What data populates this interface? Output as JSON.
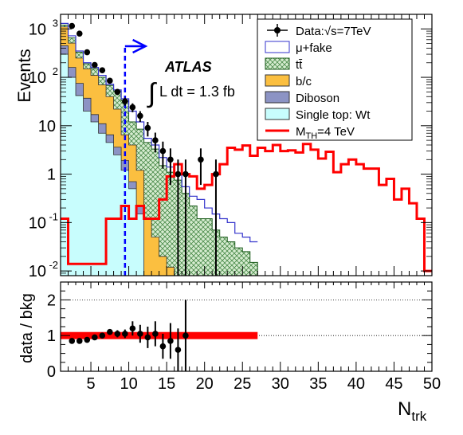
{
  "chart_data": [
    {
      "type": "histogram",
      "ylabel": "Events",
      "xlabel": "N_trk",
      "xlim": [
        1,
        50
      ],
      "ylim": [
        0.008,
        2000
      ],
      "yscale": "log",
      "ytick_labels": [
        "10^-2",
        "10^-1",
        "1",
        "10",
        "10^2",
        "10^3"
      ],
      "annotation": {
        "experiment": "ATLAS",
        "lumi_prefix": "L dt = 1.3 fb",
        "lumi_exp": "-1"
      },
      "cut_line": {
        "x": 9.5,
        "arrow_to": 12.0
      },
      "legend_position": "top-right",
      "legend": {
        "data": "Data:√s=7TeV",
        "mufake": "μ+fake",
        "ttbar": "tt̄",
        "bc": "b/c",
        "diboson": "Diboson",
        "singletop": "Single top: Wt",
        "signal_prefix": "M",
        "signal_sub": "TH",
        "signal_suffix": "=4 TeV"
      },
      "colors": {
        "mufake": "#3333cc",
        "ttbar_fill": "#d6ecd0",
        "ttbar_hatch": "#4a8a4a",
        "bc": "#fbbf40",
        "diboson": "#8c93c4",
        "singletop": "#c8fdfd",
        "signal": "#ff0000",
        "cut": "#0000ff",
        "ratio_band": "#ff0000"
      },
      "bins_low": 1,
      "bins_high": 50,
      "stack_singletop": [
        300,
        100,
        42,
        20,
        12,
        7,
        4.5,
        2.5,
        1.2,
        0.5,
        0.15
      ],
      "stack_diboson": [
        450,
        160,
        75,
        37,
        17,
        11,
        6.5,
        3.6,
        1.9,
        0.7,
        0.22
      ],
      "stack_bc": [
        1100,
        510,
        250,
        150,
        110,
        70,
        40,
        22,
        6.5,
        4,
        1.2,
        0.12,
        0.05,
        0.02,
        0.012
      ],
      "stack_ttbar": [
        1200,
        650,
        330,
        190,
        150,
        100,
        68,
        52,
        33,
        12,
        8.5,
        4.5,
        3.3,
        1.5,
        1.1,
        0.75,
        0.4,
        0.22,
        0.12,
        0.12,
        0.07,
        0.05,
        0.04,
        0.03,
        0.025,
        0.015
      ],
      "mufake_total": [
        1300,
        720,
        350,
        200,
        160,
        110,
        72,
        55,
        36,
        20,
        12,
        5.5,
        4,
        2.2,
        1.4,
        0.95,
        0.55,
        0.35,
        0.3,
        0.2,
        0.15,
        0.12,
        0.1,
        0.06,
        0.05,
        0.04
      ],
      "data_points": [
        {
          "x": 2,
          "y": 1150,
          "err": 34
        },
        {
          "x": 3,
          "y": 800,
          "err": 28
        },
        {
          "x": 4,
          "y": 330,
          "err": 18
        },
        {
          "x": 5,
          "y": 180,
          "err": 13
        },
        {
          "x": 6,
          "y": 140,
          "err": 12
        },
        {
          "x": 7,
          "y": 85,
          "err": 9
        },
        {
          "x": 8,
          "y": 50,
          "err": 7
        },
        {
          "x": 9,
          "y": 32,
          "err": 6
        },
        {
          "x": 10,
          "y": 24,
          "err": 5
        },
        {
          "x": 11,
          "y": 16,
          "err": 4
        },
        {
          "x": 12,
          "y": 9,
          "err": 3
        },
        {
          "x": 13,
          "y": 5,
          "err": 2.2
        },
        {
          "x": 14,
          "y": 3,
          "err": 1.7
        },
        {
          "x": 15,
          "y": 2,
          "err": 1.4
        },
        {
          "x": 16,
          "y": 1,
          "err": 1
        },
        {
          "x": 17,
          "y": 1,
          "err": 1
        },
        {
          "x": 19,
          "y": 2,
          "err": 1.4
        },
        {
          "x": 21,
          "y": 1,
          "err": 1
        }
      ],
      "signal": [
        0.12,
        0.014,
        0.014,
        0.014,
        0.014,
        0.014,
        0.12,
        0.12,
        0.22,
        0.12,
        0.22,
        0.12,
        0.12,
        0.3,
        0.9,
        1.6,
        1.0,
        0.9,
        0.5,
        0.6,
        1.0,
        1.6,
        3.5,
        3.2,
        3.9,
        2.4,
        3.5,
        3.0,
        4.0,
        3.0,
        3.1,
        2.8,
        4.2,
        3.2,
        2.1,
        2.9,
        1.1,
        1.6,
        2.0,
        1.6,
        1.3,
        1.3,
        0.6,
        0.8,
        0.3,
        0.5,
        0.25,
        0.12,
        0.01
      ],
      "ratio": {
        "ylabel": "data / bkg",
        "ylim": [
          0,
          2.5
        ],
        "ytick_labels": [
          "0",
          "1",
          "2"
        ],
        "xtick_labels": [
          "5",
          "10",
          "15",
          "20",
          "25",
          "30",
          "35",
          "40",
          "45",
          "50"
        ],
        "band_xmax": 27,
        "band_halfwidth": 0.1,
        "points": [
          {
            "x": 2,
            "y": 0.85,
            "err": 0.04
          },
          {
            "x": 3,
            "y": 0.85,
            "err": 0.04
          },
          {
            "x": 4,
            "y": 0.88,
            "err": 0.05
          },
          {
            "x": 5,
            "y": 0.95,
            "err": 0.05
          },
          {
            "x": 6,
            "y": 1.0,
            "err": 0.06
          },
          {
            "x": 7,
            "y": 1.1,
            "err": 0.08
          },
          {
            "x": 8,
            "y": 1.05,
            "err": 0.1
          },
          {
            "x": 9,
            "y": 1.05,
            "err": 0.12
          },
          {
            "x": 10,
            "y": 1.2,
            "err": 0.2
          },
          {
            "x": 11,
            "y": 1.05,
            "err": 0.25
          },
          {
            "x": 12,
            "y": 0.95,
            "err": 0.3
          },
          {
            "x": 13,
            "y": 1.05,
            "err": 0.35
          },
          {
            "x": 14,
            "y": 0.7,
            "err": 0.35
          },
          {
            "x": 15,
            "y": 0.85,
            "err": 0.5
          },
          {
            "x": 16,
            "y": 0.6,
            "err": 0.6
          },
          {
            "x": 17,
            "y": 1.0,
            "err": 1.0
          }
        ]
      }
    }
  ]
}
